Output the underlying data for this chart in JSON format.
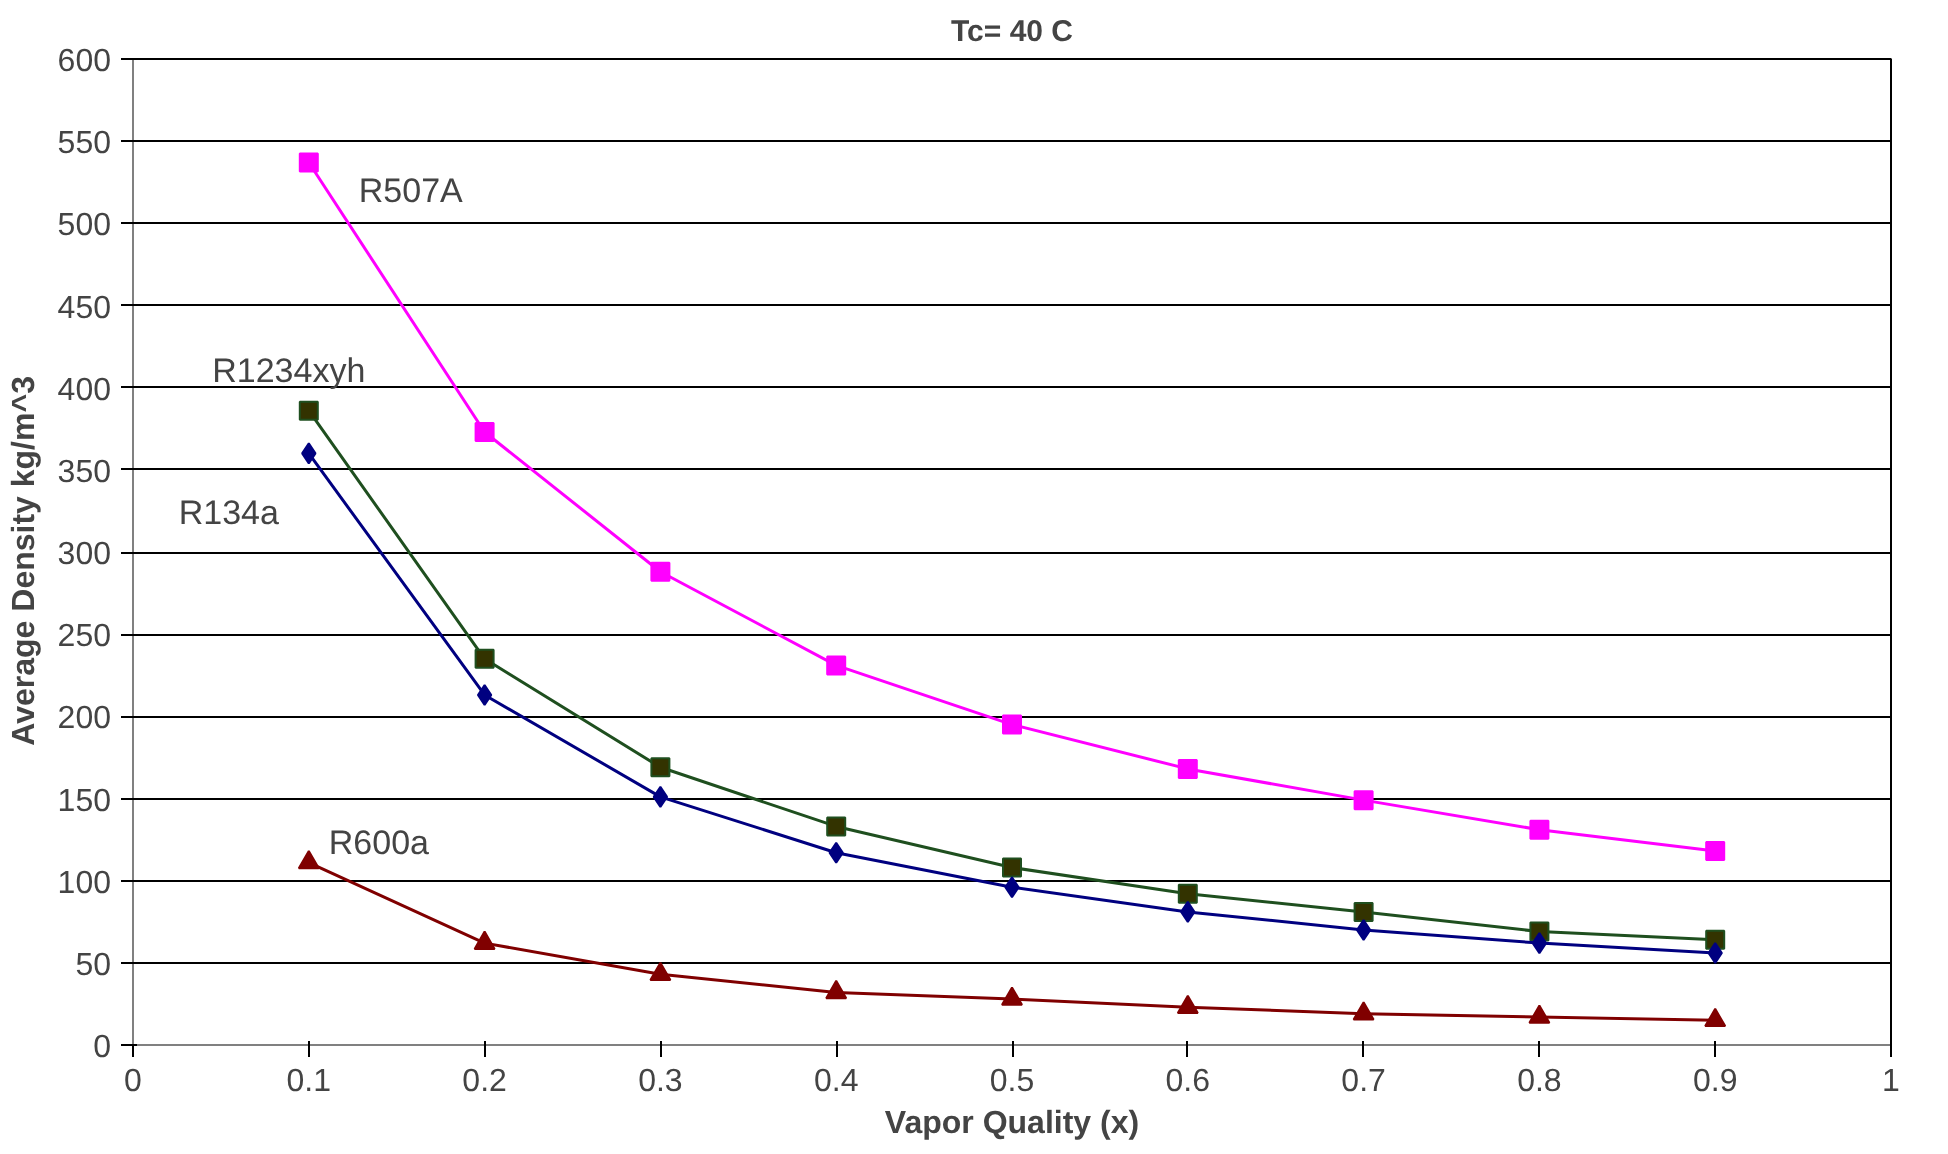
{
  "chart_data": {
    "type": "line",
    "title": "Tc= 40 C",
    "xlabel": "Vapor Quality (x)",
    "ylabel": "Average Density   kg/m^3",
    "x": [
      0.1,
      0.2,
      0.3,
      0.4,
      0.5,
      0.6,
      0.7,
      0.8,
      0.9
    ],
    "series": [
      {
        "name": "R507A",
        "color": "#ff00ff",
        "marker": "square",
        "values": [
          537,
          373,
          288,
          231,
          195,
          168,
          149,
          131,
          118
        ]
      },
      {
        "name": "R1234xyh",
        "color": "#1f4f1f",
        "marker": "square",
        "values": [
          386,
          235,
          169,
          133,
          108,
          92,
          81,
          69,
          64
        ]
      },
      {
        "name": "R134a",
        "color": "#000080",
        "marker": "diamond",
        "values": [
          360,
          213,
          151,
          117,
          96,
          81,
          70,
          62,
          56
        ]
      },
      {
        "name": "R600a",
        "color": "#800000",
        "marker": "triangle",
        "values": [
          111,
          62,
          43,
          32,
          28,
          23,
          19,
          17,
          15
        ]
      }
    ],
    "xlim": [
      0,
      1
    ],
    "xticks": [
      0,
      0.1,
      0.2,
      0.3,
      0.4,
      0.5,
      0.6,
      0.7,
      0.8,
      0.9,
      1
    ],
    "ylim": [
      0,
      600
    ],
    "yticks": [
      0,
      50,
      100,
      150,
      200,
      250,
      300,
      350,
      400,
      450,
      500,
      550,
      600
    ],
    "grid": "y",
    "line_style": "solid"
  }
}
